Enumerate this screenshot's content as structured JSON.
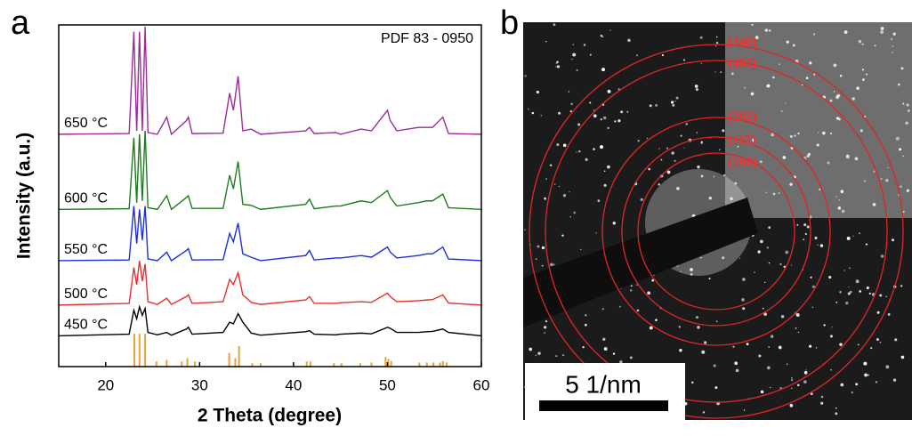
{
  "chart_data": {
    "type": "line",
    "panel_label": "a",
    "x_label": "2 Theta (degree)",
    "y_label": "Intensity (a.u.)",
    "annotation": "PDF 83 - 0950",
    "xlim": [
      15,
      60
    ],
    "xticks": [
      20,
      30,
      40,
      50,
      60
    ],
    "ylim": [
      0,
      100
    ],
    "x": [
      15,
      22.5,
      23.0,
      23.3,
      23.6,
      23.9,
      24.2,
      24.5,
      25.5,
      26.5,
      27,
      28.6,
      28.8,
      29.2,
      32.5,
      33.2,
      33.6,
      34.1,
      34.6,
      35.5,
      36.5,
      41.3,
      41.7,
      42.2,
      44.5,
      45,
      47.2,
      48.3,
      50,
      50.3,
      51,
      53.3,
      54.2,
      54.8,
      55.9,
      56.5,
      60
    ],
    "series": [
      {
        "name": "450 °C",
        "color": "#000000",
        "values": [
          9,
          9.5,
          16.5,
          14,
          17.5,
          15,
          17,
          10,
          9.3,
          10,
          9.2,
          11,
          11.5,
          9.5,
          10,
          13,
          12.5,
          15.5,
          13,
          9.8,
          9.2,
          10.2,
          10.5,
          9.5,
          9.3,
          9.5,
          9.8,
          9.6,
          11.5,
          11.2,
          10,
          10,
          10.2,
          10.3,
          11,
          10,
          9
        ]
      },
      {
        "name": "500 °C",
        "color": "#e8302e",
        "values": [
          18,
          18.5,
          29,
          24,
          31,
          25,
          30,
          19,
          18.2,
          20,
          18.2,
          20.5,
          21,
          18.5,
          19,
          25.5,
          24,
          27.5,
          21,
          18.8,
          18.2,
          19.5,
          20.5,
          18.5,
          18.5,
          18.7,
          19,
          18.8,
          21.5,
          20.5,
          19,
          19.3,
          19.5,
          19.6,
          21,
          18.6,
          18
        ]
      },
      {
        "name": "550 °C",
        "color": "#1c2ee0",
        "values": [
          31,
          31.2,
          47,
          36,
          46,
          37,
          47,
          31.5,
          31,
          33.5,
          31,
          34,
          34.5,
          31.2,
          31.3,
          39,
          36.5,
          42,
          33,
          32,
          31,
          32.5,
          34,
          31.2,
          31.8,
          31.8,
          32.5,
          32,
          35,
          33.5,
          31.8,
          32.5,
          33,
          33,
          35,
          31.5,
          31
        ]
      },
      {
        "name": "600 °C",
        "color": "#1e7b1e",
        "values": [
          46,
          46.2,
          67,
          48,
          68,
          48.5,
          69,
          46.5,
          46,
          50,
          46,
          49.5,
          50,
          46.3,
          46.3,
          56,
          52,
          60,
          47.5,
          47.2,
          46,
          47.5,
          49,
          46.2,
          47,
          47,
          48.5,
          48,
          51.5,
          49.5,
          47,
          48,
          48.5,
          48.5,
          50.5,
          46.5,
          46
        ]
      },
      {
        "name": "650 °C",
        "color": "#9a2d9a",
        "values": [
          68,
          68.2,
          98,
          69,
          98,
          69,
          99.5,
          68.5,
          68,
          73,
          68,
          72,
          73,
          68.2,
          68.3,
          80,
          75,
          85,
          69,
          69.5,
          68,
          69,
          70,
          68.2,
          68.5,
          68,
          69.5,
          69,
          75,
          72,
          69,
          70,
          70,
          70,
          73,
          68.2,
          68
        ]
      }
    ],
    "reference": {
      "color": "#e8a33a",
      "x": [
        23.05,
        23.6,
        24.2,
        25.4,
        26.5,
        28.1,
        28.7,
        29.5,
        33.15,
        33.8,
        34.2,
        35.6,
        36.5,
        41.4,
        41.8,
        44.3,
        45.1,
        47.1,
        48.3,
        49.8,
        50.1,
        50.4,
        53.4,
        54.2,
        54.9,
        55.6,
        55.9,
        56.3
      ],
      "values": [
        9.6,
        9.6,
        9.6,
        1.5,
        2,
        1.5,
        2.5,
        1.5,
        4,
        2.5,
        6,
        1,
        1,
        1.5,
        1.5,
        1,
        1,
        1,
        1.2,
        2.8,
        2.2,
        1.6,
        1.2,
        1.2,
        1.2,
        1.2,
        1.6,
        1.2
      ]
    }
  },
  "image_panel": {
    "panel_label": "b",
    "rings": [
      "(340)",
      "(402)",
      "(202)",
      "(112)",
      "(200)"
    ],
    "scale_bar": "5 1/nm"
  }
}
